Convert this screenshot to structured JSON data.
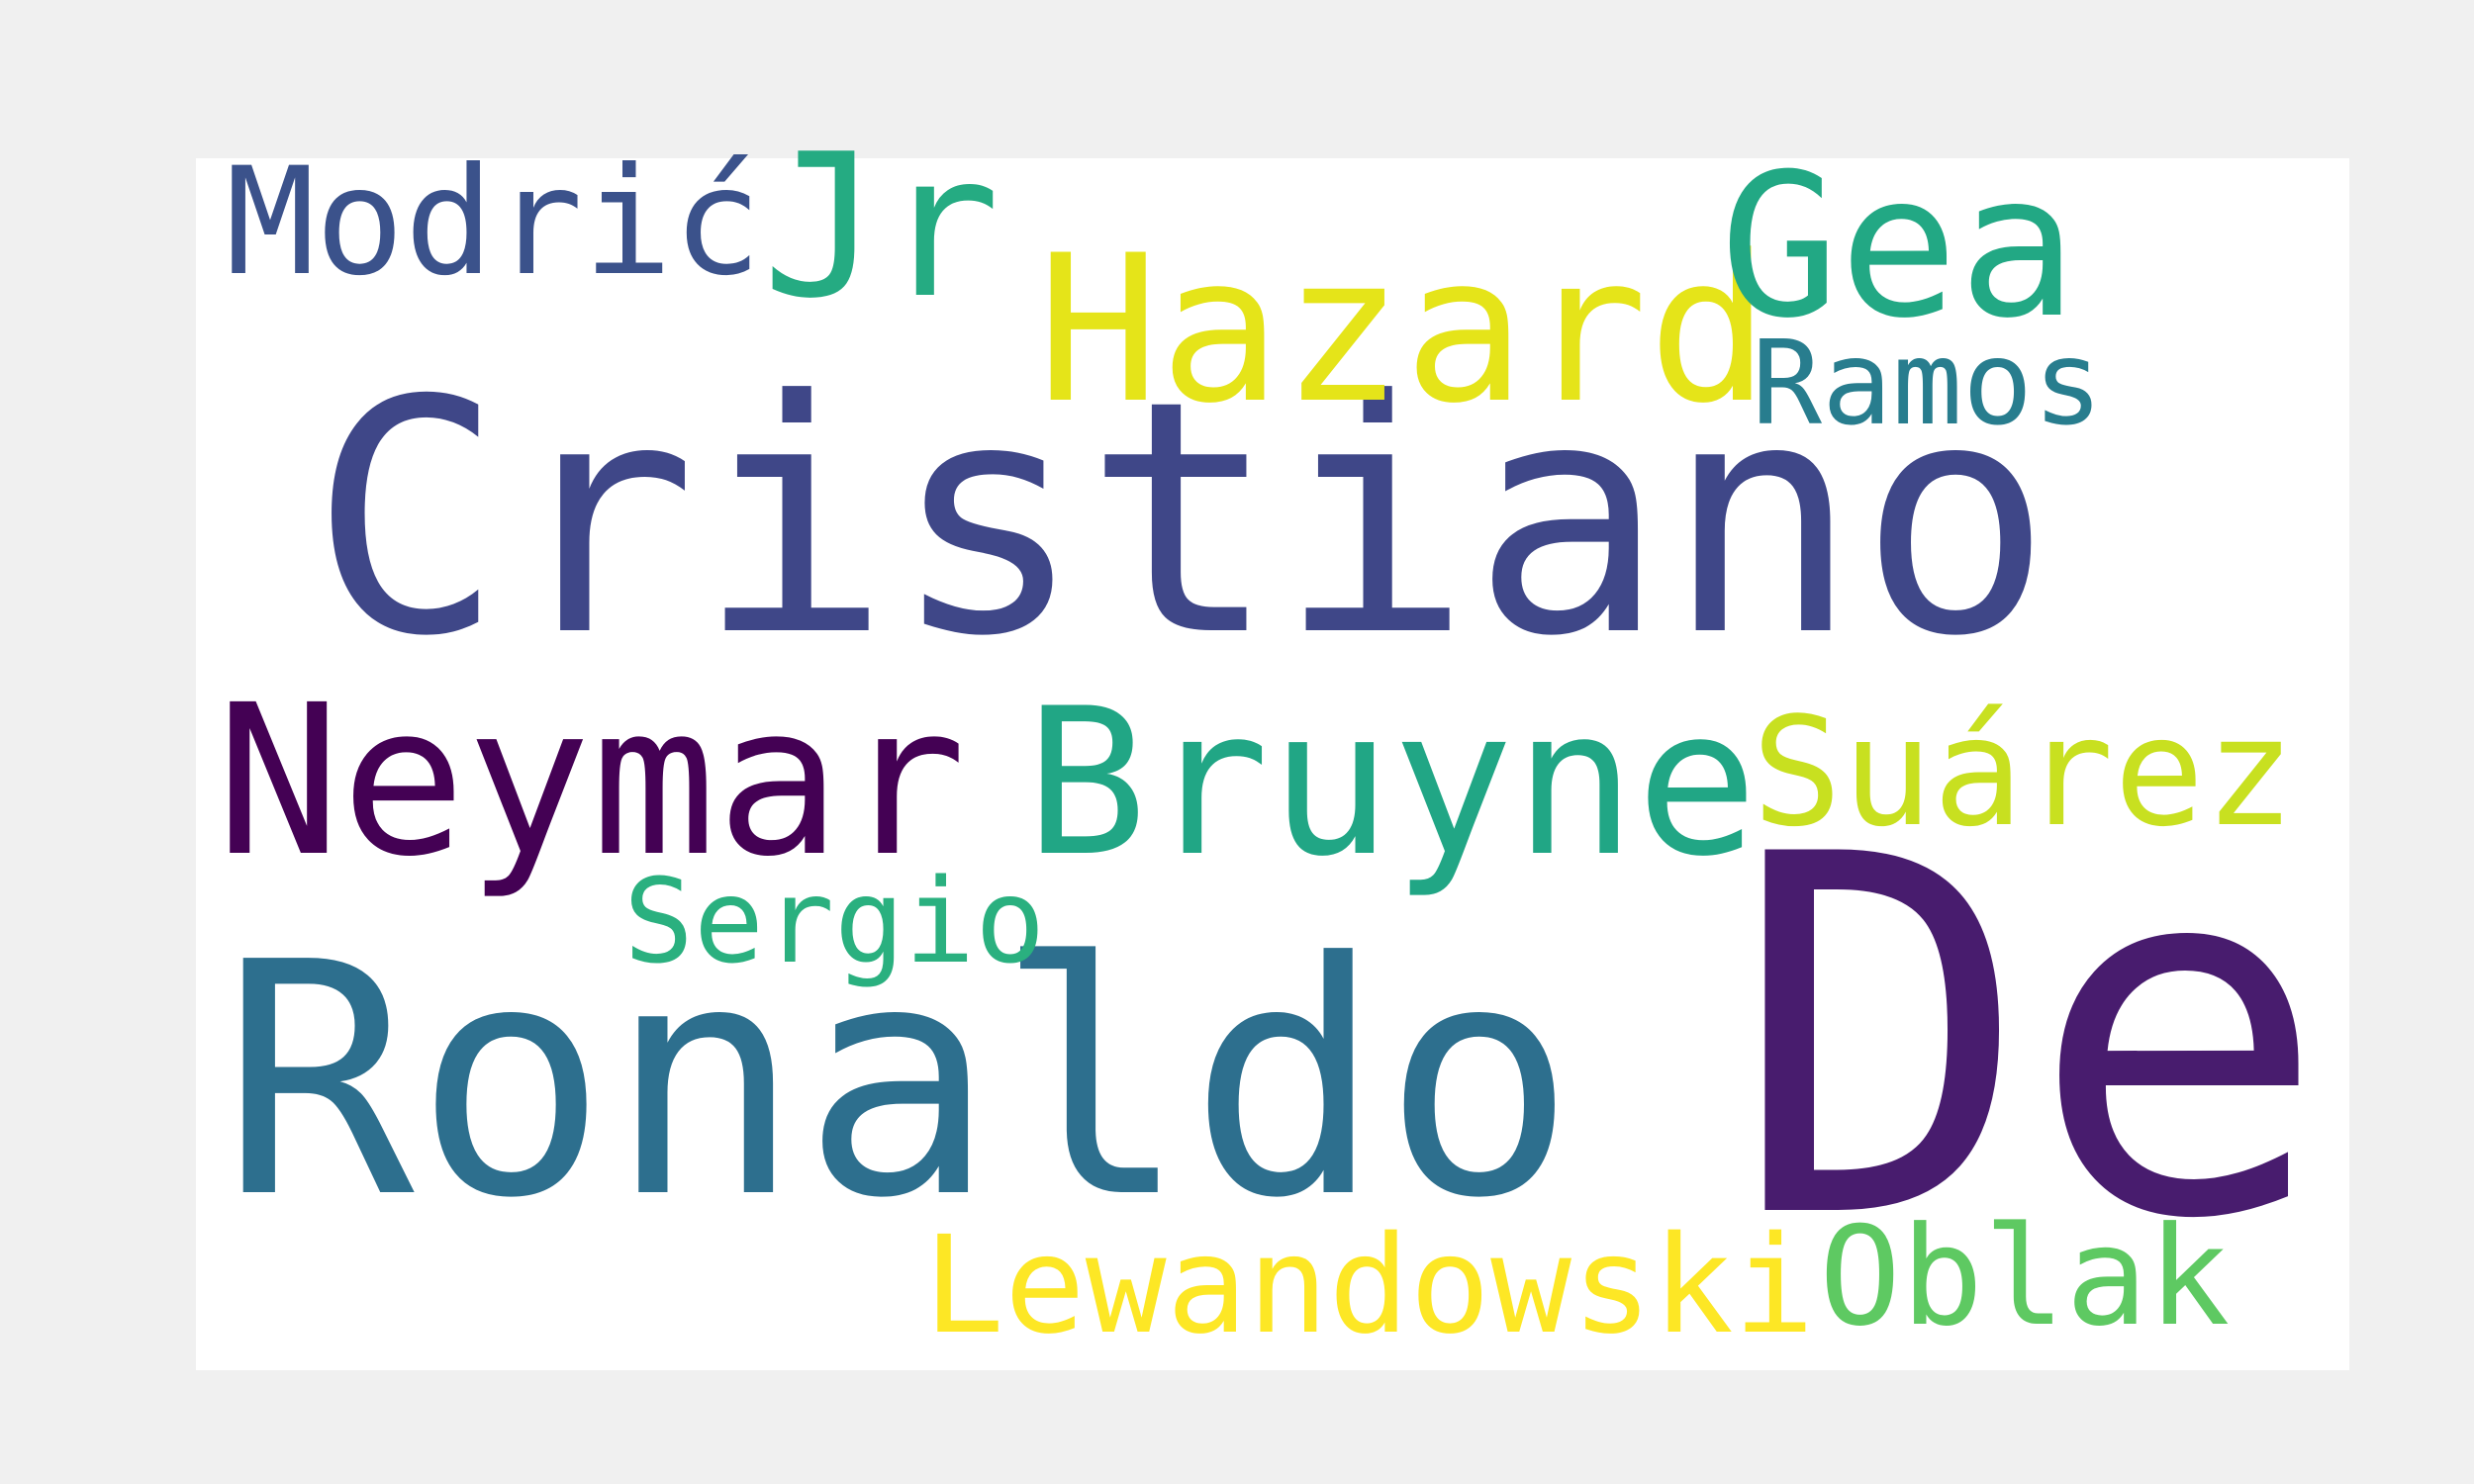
{
  "words": [
    {
      "text": "Cristiano",
      "color": "#3f4788"
    },
    {
      "text": "Ronaldo",
      "color": "#2d6f8e"
    },
    {
      "text": "De",
      "color": "#481c6e"
    },
    {
      "text": "Neymar",
      "color": "#440154"
    },
    {
      "text": "Bruyne",
      "color": "#21a685"
    },
    {
      "text": "Suárez",
      "color": "#c8e020"
    },
    {
      "text": "Hazard",
      "color": "#e5e419"
    },
    {
      "text": "Gea",
      "color": "#22a884"
    },
    {
      "text": "Modrić",
      "color": "#3b528b"
    },
    {
      "text": "Jr",
      "color": "#25ab82"
    },
    {
      "text": "Ramos",
      "color": "#287d8e"
    },
    {
      "text": "Sergio",
      "color": "#2ab07f"
    },
    {
      "text": "Lewandowski",
      "color": "#fde725"
    },
    {
      "text": "Oblak",
      "color": "#5ec962"
    }
  ]
}
